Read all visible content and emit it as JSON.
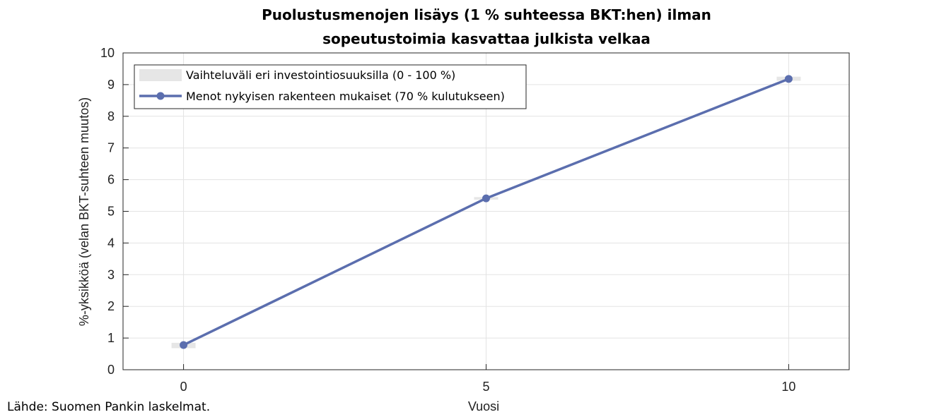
{
  "chart_data": {
    "type": "line",
    "title_lines": [
      "Puolustusmenojen lisäys (1 % suhteessa BKT:hen) ilman",
      "sopeutustoimia kasvattaa julkista velkaa"
    ],
    "xlabel": "Vuosi",
    "ylabel": "%-yksikköä (velan BKT-suhteen muutos)",
    "xlim": [
      -1,
      11
    ],
    "ylim": [
      0,
      10
    ],
    "x_ticks": [
      0,
      5,
      10
    ],
    "y_ticks": [
      0,
      1,
      2,
      3,
      4,
      5,
      6,
      7,
      8,
      9,
      10
    ],
    "grid": true,
    "legend_position": "top-left",
    "x": [
      0,
      5,
      10
    ],
    "series": [
      {
        "name": "Vaihteluväli eri investointiosuuksilla (0 - 100 %)",
        "kind": "range",
        "color": "#e6e6e6",
        "low": [
          0.68,
          5.37,
          9.12
        ],
        "high": [
          0.85,
          5.45,
          9.25
        ]
      },
      {
        "name": "Menot nykyisen rakenteen mukaiset (70 % kulutukseen)",
        "kind": "line",
        "color": "#5b6eae",
        "values": [
          0.78,
          5.41,
          9.18
        ]
      }
    ]
  },
  "source": "Lähde: Suomen Pankin laskelmat."
}
